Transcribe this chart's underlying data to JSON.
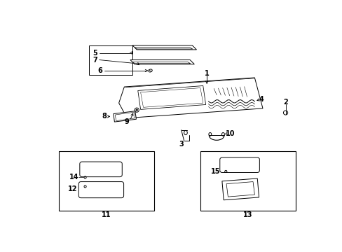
{
  "bg_color": "#ffffff",
  "line_color": "#000000",
  "label_color": "#000000",
  "label_fs": 7,
  "lw": 0.7
}
